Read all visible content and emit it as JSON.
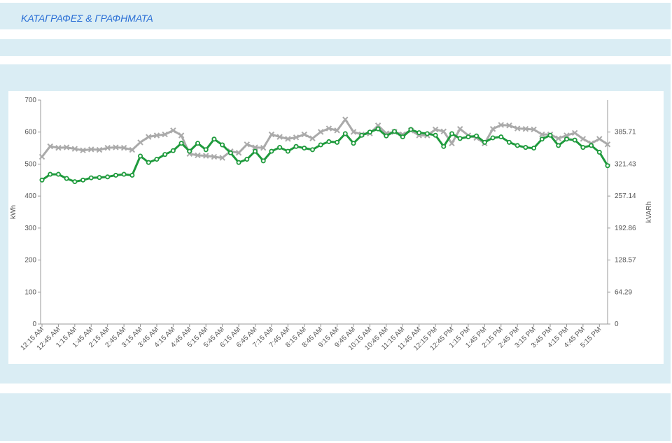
{
  "header": {
    "title": "ΚΑΤΑΓΡΑΦΕΣ & ΓΡΑΦΗΜΑΤΑ"
  },
  "chart_data": {
    "type": "line",
    "ylabel": "kWh",
    "y2label": "kVARh",
    "categories": [
      "12:15 AM",
      null,
      "12:45 AM",
      null,
      "1:15 AM",
      null,
      "1:45 AM",
      null,
      "2:15 AM",
      null,
      "2:45 AM",
      null,
      "3:15 AM",
      null,
      "3:45 AM",
      null,
      "4:15 AM",
      null,
      "4:45 AM",
      null,
      "5:15 AM",
      null,
      "5:45 AM",
      null,
      "6:15 AM",
      null,
      "6:45 AM",
      null,
      "7:15 AM",
      null,
      "7:45 AM",
      null,
      "8:15 AM",
      null,
      "8:45 AM",
      null,
      "9:15 AM",
      null,
      "9:45 AM",
      null,
      "10:15 AM",
      null,
      "10:45 AM",
      null,
      "11:15 AM",
      null,
      "11:45 AM",
      null,
      "12:15 PM",
      null,
      "12:45 PM",
      null,
      "1:15 PM",
      null,
      "1:45 PM",
      null,
      "2:15 PM",
      null,
      "2:45 PM",
      null,
      "3:15 PM",
      null,
      "3:45 PM",
      null,
      "4:15 PM",
      null,
      "4:45 PM",
      null,
      "5:15 PM",
      null
    ],
    "ylim": [
      0,
      700
    ],
    "yticks": [
      0,
      100,
      200,
      300,
      400,
      500,
      600,
      700
    ],
    "y2lim": [
      0,
      450
    ],
    "y2ticks": [
      0,
      64.29,
      128.57,
      192.86,
      257.14,
      321.43,
      385.71
    ],
    "series": [
      {
        "axis": "y2",
        "color": "#aaaaaa",
        "values": [
          336,
          357,
          354,
          355,
          352,
          349,
          351,
          350,
          354,
          355,
          354,
          350,
          365,
          376,
          379,
          381,
          389,
          379,
          342,
          339,
          338,
          336,
          334,
          347,
          344,
          361,
          355,
          354,
          381,
          376,
          372,
          375,
          381,
          373,
          386,
          393,
          389,
          411,
          386,
          381,
          383,
          399,
          383,
          386,
          381,
          389,
          379,
          379,
          391,
          387,
          363,
          392,
          379,
          374,
          363,
          392,
          400,
          399,
          393,
          392,
          391,
          381,
          381,
          373,
          379,
          384,
          372,
          363,
          372,
          361
        ]
      },
      {
        "axis": "y",
        "color": "#1e9a3c",
        "values": [
          450,
          468,
          468,
          455,
          445,
          450,
          457,
          458,
          460,
          465,
          468,
          465,
          525,
          505,
          515,
          530,
          542,
          565,
          540,
          565,
          545,
          578,
          560,
          535,
          505,
          515,
          540,
          510,
          540,
          552,
          540,
          555,
          550,
          545,
          560,
          570,
          568,
          595,
          565,
          590,
          600,
          610,
          588,
          602,
          585,
          608,
          598,
          595,
          590,
          555,
          595,
          580,
          585,
          588,
          568,
          582,
          585,
          568,
          558,
          552,
          550,
          578,
          590,
          558,
          578,
          575,
          552,
          558,
          537,
          495
        ]
      }
    ]
  }
}
